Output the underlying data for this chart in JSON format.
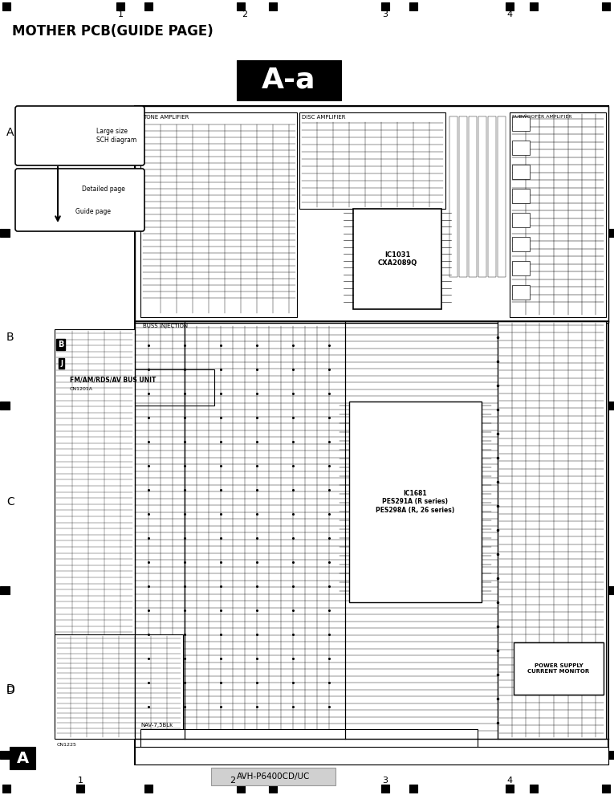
{
  "title": "MOTHER PCB(GUIDE PAGE)",
  "center_label": "A-a",
  "bottom_model": "AVH-P6400CD/UC",
  "bottom_label_A": "A",
  "bg_color": "#ffffff",
  "legend_box1_text": "Large size\nSCH diagram",
  "legend_box2_text_top": "Guide page",
  "legend_box2_text_bot": "Detailed page",
  "fm_am_label": "FM/AM/RDS/AV BUS UNIT",
  "ic1031_label": "IC1031\nCXA2089Q",
  "ic1681_label": "IC1681\nPES291A (R series)\nPES298A (R, 26 series)",
  "nav_label": "NAV-7,5BLk",
  "power_label": "POWER SUPPLY\nCURRENT MONITOR",
  "gray_box_color": "#d0d0d0",
  "tone_amp_label": "TONE AMPLIFIER",
  "disc_amp_label": "DISC AMPLIFIER",
  "sub_label": "SUBWOOFER AMPLIFIER",
  "bus_inject_label": "BUSS INJECTION"
}
